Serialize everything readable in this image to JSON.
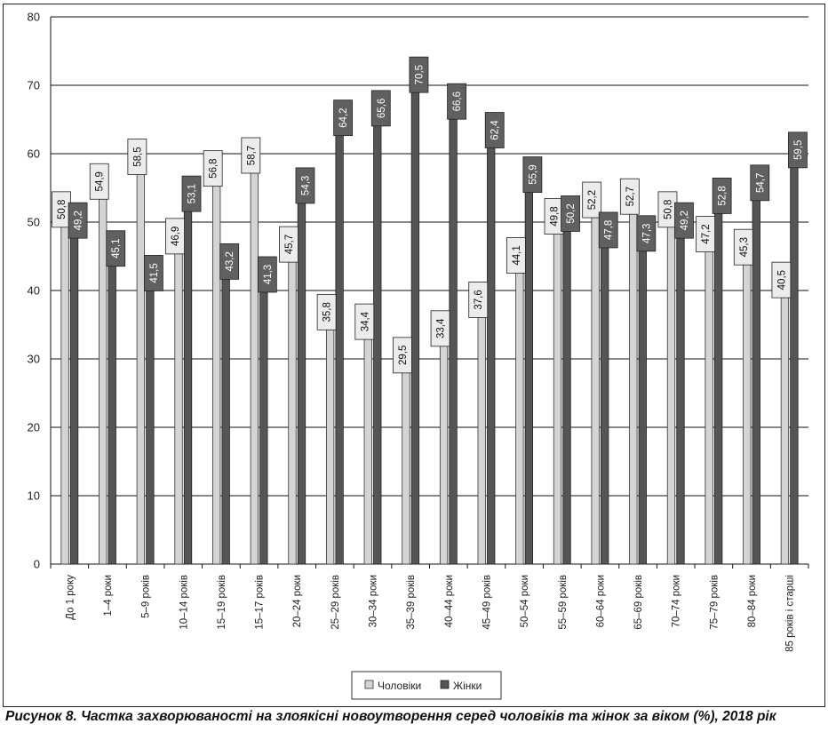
{
  "caption": "Рисунок 8. Частка захворюваності на злоякісні новоутворення серед чоловіків та жінок за віком (%), 2018 рік",
  "chart_data": {
    "type": "bar",
    "title": "",
    "xlabel": "",
    "ylabel": "",
    "ylim": [
      0,
      80
    ],
    "yticks": [
      0,
      10,
      20,
      30,
      40,
      50,
      60,
      70,
      80
    ],
    "grid": true,
    "legend_position": "bottom-center",
    "categories": [
      "До 1 року",
      "1–4 роки",
      "5–9 років",
      "10–14 років",
      "15–19 років",
      "15–17 років",
      "20–24 роки",
      "25–29 років",
      "30–34 роки",
      "35–39 років",
      "40–44 роки",
      "45–49 років",
      "50–54 роки",
      "55–59 років",
      "60–64 роки",
      "65–69 років",
      "70–74 роки",
      "75–79 років",
      "80–84 роки",
      "85 років і старші"
    ],
    "series": [
      {
        "name": "Чоловіки",
        "color": "#d4d4d4",
        "values": [
          50.8,
          54.9,
          58.5,
          46.9,
          56.8,
          58.7,
          45.7,
          35.8,
          34.4,
          29.5,
          33.4,
          37.6,
          44.1,
          49.8,
          52.2,
          52.7,
          50.8,
          47.2,
          45.3,
          40.5
        ],
        "labels": [
          "50,8",
          "54,9",
          "58,5",
          "46,9",
          "56,8",
          "58,7",
          "45,7",
          "35,8",
          "34,4",
          "29,5",
          "33,4",
          "37,6",
          "44,1",
          "49,8",
          "52,2",
          "52,7",
          "50,8",
          "47,2",
          "45,3",
          "40,5"
        ]
      },
      {
        "name": "Жінки",
        "color": "#555555",
        "values": [
          49.2,
          45.1,
          41.5,
          53.1,
          43.2,
          41.3,
          54.3,
          64.2,
          65.6,
          70.5,
          66.6,
          62.4,
          55.9,
          50.2,
          47.8,
          47.3,
          49.2,
          52.8,
          54.7,
          59.5
        ],
        "labels": [
          "49,2",
          "45,1",
          "41,5",
          "53,1",
          "43,2",
          "41,3",
          "54,3",
          "64,2",
          "65,6",
          "70,5",
          "66,6",
          "62,4",
          "55,9",
          "50,2",
          "47,8",
          "47,3",
          "49,2",
          "52,8",
          "54,7",
          "59,5"
        ]
      }
    ]
  }
}
